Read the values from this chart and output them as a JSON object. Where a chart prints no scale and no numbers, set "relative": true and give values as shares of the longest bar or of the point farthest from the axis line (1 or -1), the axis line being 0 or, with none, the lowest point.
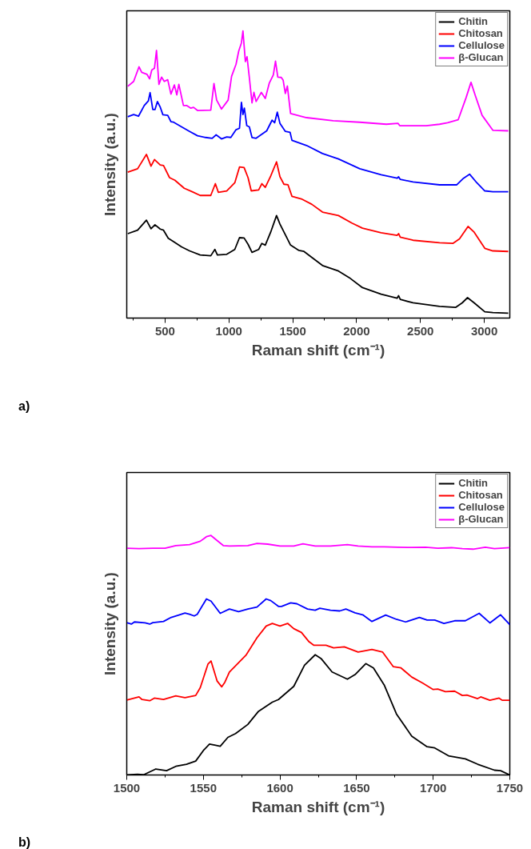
{
  "chart_data": [
    {
      "type": "line",
      "relative": true,
      "xlabel": "Raman shift (cm⁻¹)",
      "ylabel": "Intensity (a.u.)",
      "xlim": [
        200,
        3200
      ],
      "xticks": [
        500,
        1000,
        1500,
        2000,
        2500,
        3000
      ],
      "tick_labels": "x",
      "grid": false,
      "legend": "top right",
      "marker": "none",
      "line_style": "solid",
      "annotations": [
        "a)"
      ],
      "series": [
        {
          "name": "Chitin",
          "color": "#000000",
          "x": [
            208,
            285,
            354,
            390,
            421,
            462,
            488,
            525,
            567,
            629,
            692,
            775,
            858,
            890,
            910,
            983,
            1046,
            1083,
            1119,
            1150,
            1181,
            1233,
            1258,
            1285,
            1327,
            1373,
            1400,
            1442,
            1483,
            1546,
            1588,
            1650,
            1733,
            1858,
            1942,
            2046,
            2192,
            2317,
            2329,
            2342,
            2442,
            2650,
            2775,
            2827,
            2869,
            2921,
            3004,
            3067,
            3188
          ],
          "values": [
            0.294,
            0.306,
            0.341,
            0.311,
            0.325,
            0.31,
            0.306,
            0.278,
            0.266,
            0.248,
            0.234,
            0.22,
            0.217,
            0.239,
            0.22,
            0.222,
            0.239,
            0.28,
            0.279,
            0.257,
            0.229,
            0.239,
            0.26,
            0.254,
            0.299,
            0.357,
            0.327,
            0.29,
            0.254,
            0.236,
            0.232,
            0.211,
            0.183,
            0.164,
            0.141,
            0.106,
            0.083,
            0.069,
            0.078,
            0.065,
            0.053,
            0.041,
            0.037,
            0.053,
            0.071,
            0.053,
            0.022,
            0.019,
            0.017
          ]
        },
        {
          "name": "Chitosan",
          "color": "#ff0000",
          "x": [
            208,
            285,
            354,
            390,
            417,
            462,
            488,
            535,
            577,
            650,
            713,
            775,
            858,
            894,
            917,
            983,
            1046,
            1083,
            1119,
            1150,
            1175,
            1233,
            1258,
            1285,
            1327,
            1373,
            1400,
            1431,
            1463,
            1494,
            1567,
            1650,
            1733,
            1858,
            1963,
            2046,
            2192,
            2317,
            2329,
            2342,
            2442,
            2650,
            2754,
            2806,
            2873,
            2921,
            3004,
            3067,
            3188
          ],
          "values": [
            0.508,
            0.52,
            0.57,
            0.529,
            0.552,
            0.533,
            0.531,
            0.489,
            0.48,
            0.452,
            0.44,
            0.427,
            0.427,
            0.468,
            0.438,
            0.443,
            0.471,
            0.526,
            0.524,
            0.489,
            0.443,
            0.446,
            0.468,
            0.455,
            0.494,
            0.544,
            0.492,
            0.466,
            0.464,
            0.424,
            0.415,
            0.396,
            0.369,
            0.357,
            0.331,
            0.313,
            0.297,
            0.288,
            0.294,
            0.282,
            0.271,
            0.262,
            0.26,
            0.276,
            0.319,
            0.299,
            0.243,
            0.234,
            0.232
          ]
        },
        {
          "name": "Cellulose",
          "color": "#0000ff",
          "x": [
            208,
            254,
            292,
            337,
            369,
            383,
            404,
            421,
            440,
            462,
            483,
            521,
            546,
            567,
            629,
            692,
            754,
            817,
            869,
            900,
            942,
            983,
            1015,
            1056,
            1083,
            1098,
            1110,
            1121,
            1140,
            1160,
            1181,
            1213,
            1296,
            1338,
            1358,
            1379,
            1400,
            1442,
            1479,
            1494,
            1608,
            1733,
            1858,
            2025,
            2192,
            2317,
            2329,
            2342,
            2442,
            2650,
            2785,
            2838,
            2885,
            2942,
            3004,
            3067,
            3188
          ],
          "values": [
            0.701,
            0.709,
            0.703,
            0.74,
            0.756,
            0.785,
            0.726,
            0.726,
            0.754,
            0.735,
            0.708,
            0.706,
            0.684,
            0.682,
            0.666,
            0.65,
            0.635,
            0.629,
            0.626,
            0.638,
            0.624,
            0.631,
            0.629,
            0.656,
            0.661,
            0.751,
            0.709,
            0.731,
            0.67,
            0.666,
            0.629,
            0.626,
            0.652,
            0.689,
            0.68,
            0.717,
            0.678,
            0.65,
            0.647,
            0.619,
            0.601,
            0.573,
            0.554,
            0.52,
            0.499,
            0.487,
            0.492,
            0.483,
            0.474,
            0.464,
            0.464,
            0.487,
            0.501,
            0.471,
            0.443,
            0.44,
            0.44
          ]
        },
        {
          "name": "β-Glucan",
          "color": "#ff00ff",
          "x": [
            208,
            254,
            296,
            317,
            358,
            379,
            396,
            417,
            433,
            452,
            473,
            494,
            521,
            546,
            573,
            592,
            608,
            644,
            671,
            702,
            723,
            754,
            858,
            883,
            904,
            942,
            994,
            1021,
            1056,
            1077,
            1098,
            1110,
            1129,
            1142,
            1160,
            1181,
            1196,
            1213,
            1254,
            1285,
            1317,
            1348,
            1365,
            1383,
            1410,
            1425,
            1442,
            1458,
            1483,
            1608,
            1817,
            2025,
            2233,
            2325,
            2338,
            2546,
            2650,
            2713,
            2796,
            2858,
            2896,
            2931,
            2983,
            3067,
            3188
          ],
          "values": [
            0.807,
            0.824,
            0.875,
            0.856,
            0.849,
            0.833,
            0.864,
            0.87,
            0.932,
            0.814,
            0.839,
            0.824,
            0.83,
            0.78,
            0.812,
            0.777,
            0.814,
            0.74,
            0.74,
            0.731,
            0.734,
            0.723,
            0.724,
            0.817,
            0.759,
            0.728,
            0.759,
            0.842,
            0.884,
            0.93,
            0.958,
            1.0,
            0.893,
            0.91,
            0.838,
            0.749,
            0.786,
            0.754,
            0.786,
            0.765,
            0.819,
            0.847,
            0.895,
            0.839,
            0.838,
            0.828,
            0.782,
            0.808,
            0.712,
            0.698,
            0.687,
            0.682,
            0.675,
            0.678,
            0.67,
            0.67,
            0.675,
            0.68,
            0.691,
            0.768,
            0.821,
            0.773,
            0.706,
            0.654,
            0.652
          ]
        }
      ]
    },
    {
      "type": "line",
      "relative": true,
      "xlabel": "Raman shift (cm⁻¹)",
      "ylabel": "Intensity (a.u.)",
      "xlim": [
        1500,
        1750
      ],
      "xticks": [
        1500,
        1550,
        1600,
        1650,
        1700,
        1750
      ],
      "tick_labels": "x",
      "grid": false,
      "legend": "top right",
      "marker": "none",
      "line_style": "solid",
      "annotations": [
        "b)"
      ],
      "series": [
        {
          "name": "Chitin",
          "color": "#000000",
          "x": [
            1500,
            1507,
            1511,
            1519,
            1526,
            1532,
            1539,
            1545,
            1550,
            1554,
            1558,
            1561,
            1566,
            1571,
            1579,
            1586,
            1595,
            1599,
            1609,
            1616,
            1623,
            1627,
            1634,
            1644,
            1649,
            1656,
            1661,
            1668,
            1676,
            1686,
            1696,
            1701,
            1710,
            1721,
            1729,
            1740,
            1744,
            1750
          ],
          "values": [
            0,
            0.003,
            0.001,
            0.025,
            0.018,
            0.036,
            0.045,
            0.058,
            0.102,
            0.129,
            0.124,
            0.12,
            0.157,
            0.173,
            0.211,
            0.266,
            0.304,
            0.315,
            0.37,
            0.458,
            0.502,
            0.485,
            0.43,
            0.4,
            0.419,
            0.465,
            0.447,
            0.376,
            0.255,
            0.162,
            0.118,
            0.113,
            0.08,
            0.067,
            0.045,
            0.02,
            0.018,
            0
          ]
        },
        {
          "name": "Chitosan",
          "color": "#ff0000",
          "x": [
            1500,
            1508,
            1510,
            1515,
            1518,
            1524,
            1532,
            1538,
            1545,
            1548,
            1553,
            1555,
            1559,
            1562,
            1564,
            1567,
            1578,
            1585,
            1591,
            1595,
            1600,
            1605,
            1609,
            1614,
            1619,
            1622,
            1630,
            1635,
            1642,
            1651,
            1660,
            1667,
            1674,
            1679,
            1686,
            1693,
            1700,
            1703,
            1708,
            1714,
            1719,
            1722,
            1729,
            1731,
            1737,
            1743,
            1745,
            1750
          ],
          "values": [
            0.313,
            0.326,
            0.315,
            0.31,
            0.321,
            0.315,
            0.33,
            0.323,
            0.332,
            0.365,
            0.463,
            0.476,
            0.392,
            0.368,
            0.387,
            0.43,
            0.502,
            0.573,
            0.622,
            0.633,
            0.622,
            0.633,
            0.611,
            0.595,
            0.556,
            0.542,
            0.542,
            0.531,
            0.535,
            0.513,
            0.524,
            0.513,
            0.452,
            0.447,
            0.409,
            0.384,
            0.357,
            0.359,
            0.348,
            0.35,
            0.332,
            0.334,
            0.319,
            0.326,
            0.312,
            0.321,
            0.312,
            0.312
          ]
        },
        {
          "name": "Cellulose",
          "color": "#0000ff",
          "x": [
            1500,
            1503,
            1505,
            1512,
            1515,
            1517,
            1524,
            1529,
            1534,
            1538,
            1541,
            1544,
            1546,
            1552,
            1555,
            1561,
            1567,
            1573,
            1579,
            1585,
            1591,
            1594,
            1599,
            1601,
            1607,
            1611,
            1618,
            1623,
            1626,
            1633,
            1639,
            1643,
            1649,
            1654,
            1660,
            1669,
            1676,
            1682,
            1691,
            1696,
            1701,
            1707,
            1714,
            1721,
            1730,
            1737,
            1744,
            1750
          ],
          "values": [
            0.636,
            0.63,
            0.639,
            0.635,
            0.63,
            0.636,
            0.641,
            0.658,
            0.668,
            0.676,
            0.671,
            0.664,
            0.671,
            0.735,
            0.726,
            0.675,
            0.693,
            0.682,
            0.693,
            0.701,
            0.735,
            0.728,
            0.704,
            0.704,
            0.719,
            0.715,
            0.693,
            0.688,
            0.696,
            0.688,
            0.685,
            0.693,
            0.677,
            0.669,
            0.641,
            0.668,
            0.65,
            0.639,
            0.658,
            0.647,
            0.647,
            0.633,
            0.644,
            0.644,
            0.675,
            0.635,
            0.669,
            0.628
          ]
        },
        {
          "name": "β-Glucan",
          "color": "#ff00ff",
          "x": [
            1500,
            1508,
            1517,
            1525,
            1532,
            1541,
            1548,
            1552,
            1555,
            1558,
            1563,
            1567,
            1579,
            1585,
            1592,
            1600,
            1609,
            1615,
            1623,
            1633,
            1644,
            1651,
            1660,
            1668,
            1677,
            1686,
            1695,
            1703,
            1712,
            1719,
            1726,
            1734,
            1740,
            1750
          ],
          "values": [
            0.947,
            0.945,
            0.947,
            0.947,
            0.958,
            0.962,
            0.976,
            0.995,
            1.0,
            0.984,
            0.958,
            0.956,
            0.958,
            0.967,
            0.964,
            0.956,
            0.956,
            0.965,
            0.956,
            0.956,
            0.962,
            0.956,
            0.953,
            0.953,
            0.951,
            0.95,
            0.951,
            0.947,
            0.949,
            0.945,
            0.943,
            0.951,
            0.945,
            0.949
          ]
        }
      ]
    }
  ]
}
